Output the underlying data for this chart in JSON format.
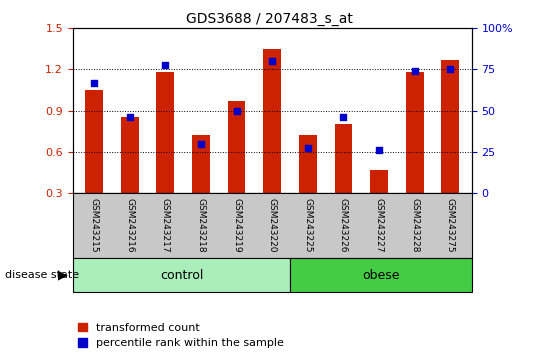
{
  "title": "GDS3688 / 207483_s_at",
  "samples": [
    "GSM243215",
    "GSM243216",
    "GSM243217",
    "GSM243218",
    "GSM243219",
    "GSM243220",
    "GSM243225",
    "GSM243226",
    "GSM243227",
    "GSM243228",
    "GSM243275"
  ],
  "red_values": [
    1.05,
    0.855,
    1.18,
    0.72,
    0.97,
    1.35,
    0.72,
    0.8,
    0.47,
    1.18,
    1.27
  ],
  "blue_values_pct": [
    67,
    46,
    78,
    30,
    50,
    80,
    27,
    46,
    26,
    74,
    75
  ],
  "ylim_left": [
    0.3,
    1.5
  ],
  "ylim_right": [
    0,
    100
  ],
  "yticks_left": [
    0.3,
    0.6,
    0.9,
    1.2,
    1.5
  ],
  "yticks_right": [
    0,
    25,
    50,
    75,
    100
  ],
  "ytick_labels_right": [
    "0",
    "25",
    "50",
    "75",
    "100%"
  ],
  "bar_color": "#CC2200",
  "dot_color": "#0000CC",
  "bar_width": 0.5,
  "dot_size": 25,
  "legend": [
    "transformed count",
    "percentile rank within the sample"
  ],
  "tick_label_color_left": "#CC2200",
  "tick_label_color_right": "#0000CC",
  "xlabel_area_color": "#C8C8C8",
  "control_color": "#AAEEBB",
  "obese_color": "#44CC44",
  "n_control": 6,
  "n_obese": 5
}
